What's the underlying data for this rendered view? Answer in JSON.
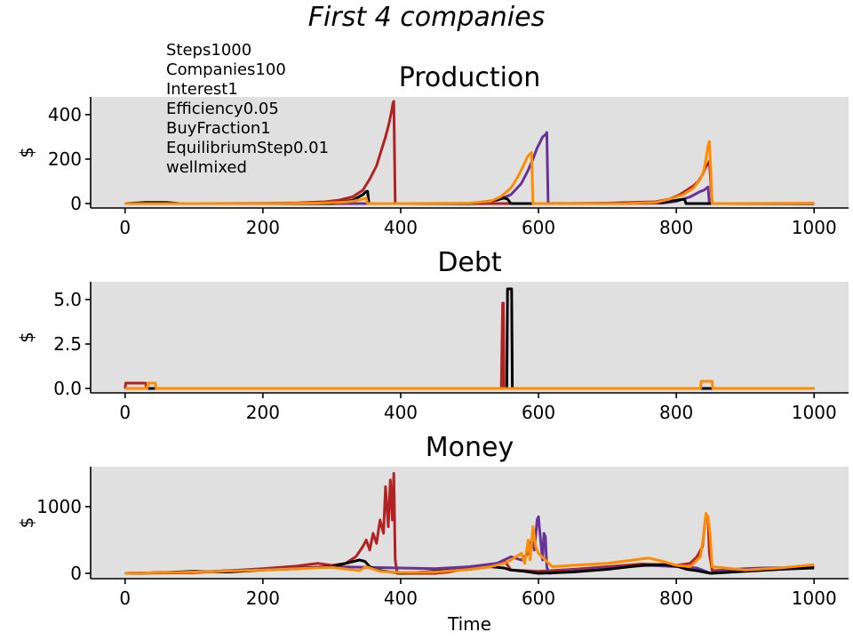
{
  "figure": {
    "suptitle": "First 4 companies",
    "annotation": [
      "Steps1000",
      "Companies100",
      "Interest1",
      "Efficiency0.05",
      "BuyFraction1",
      "EquilibriumStep0.01",
      "wellmixed"
    ],
    "background": "#e0e0e0"
  },
  "chart_data": [
    {
      "type": "line",
      "title": "Production",
      "xlabel": "",
      "ylabel": "$",
      "xlim": [
        -50,
        1050
      ],
      "ylim": [
        -20,
        480
      ],
      "xticks": [
        0,
        200,
        400,
        600,
        800,
        1000
      ],
      "yticks": [
        0,
        200,
        400
      ],
      "ytick_labels": [
        "0",
        "200",
        "400"
      ],
      "series": [
        {
          "color": "#b22222",
          "x": [
            0,
            100,
            200,
            250,
            290,
            310,
            330,
            345,
            355,
            365,
            372,
            378,
            383,
            387,
            389,
            390,
            392,
            500,
            560,
            570,
            600,
            700,
            770,
            790,
            805,
            815,
            825,
            832,
            838,
            842,
            846,
            848,
            852,
            1000
          ],
          "y": [
            0,
            0,
            1,
            3,
            8,
            15,
            30,
            60,
            110,
            170,
            240,
            300,
            360,
            420,
            455,
            460,
            0,
            0,
            0,
            0,
            0,
            2,
            8,
            20,
            40,
            60,
            80,
            100,
            130,
            160,
            180,
            190,
            0,
            0
          ]
        },
        {
          "color": "#663399",
          "x": [
            0,
            300,
            500,
            540,
            560,
            575,
            585,
            592,
            598,
            602,
            606,
            610,
            612,
            614,
            700,
            780,
            800,
            820,
            835,
            840,
            844,
            846,
            848,
            1000
          ],
          "y": [
            0,
            0,
            0,
            15,
            40,
            90,
            150,
            200,
            250,
            275,
            300,
            310,
            320,
            0,
            0,
            2,
            10,
            30,
            55,
            60,
            70,
            75,
            0,
            0
          ]
        },
        {
          "color": "#000000",
          "x": [
            0,
            30,
            60,
            80,
            300,
            330,
            345,
            350,
            352,
            354,
            360,
            500,
            530,
            550,
            555,
            560,
            585,
            587,
            700,
            780,
            800,
            812,
            814,
            1000
          ],
          "y": [
            0,
            5,
            5,
            0,
            0,
            15,
            40,
            55,
            55,
            0,
            0,
            0,
            10,
            25,
            20,
            0,
            0,
            0,
            0,
            5,
            15,
            20,
            0,
            0
          ]
        },
        {
          "color": "#ff8c00",
          "x": [
            0,
            100,
            200,
            280,
            310,
            330,
            345,
            350,
            352,
            355,
            400,
            500,
            530,
            545,
            560,
            570,
            578,
            584,
            588,
            590,
            592,
            650,
            720,
            770,
            790,
            810,
            825,
            835,
            840,
            843,
            846,
            848,
            850,
            852,
            1000
          ],
          "y": [
            0,
            0,
            0,
            2,
            5,
            10,
            20,
            25,
            0,
            0,
            0,
            2,
            10,
            30,
            70,
            120,
            170,
            210,
            225,
            230,
            0,
            0,
            0,
            5,
            20,
            40,
            70,
            110,
            150,
            200,
            260,
            280,
            150,
            0,
            2
          ]
        }
      ]
    },
    {
      "type": "line",
      "title": "Debt",
      "xlabel": "",
      "ylabel": "$",
      "xlim": [
        -50,
        1050
      ],
      "ylim": [
        -0.25,
        6.0
      ],
      "xticks": [
        0,
        200,
        400,
        600,
        800,
        1000
      ],
      "yticks": [
        0,
        2.5,
        5
      ],
      "ytick_labels": [
        "0.0",
        "2.5",
        "5.0"
      ],
      "series": [
        {
          "color": "#b22222",
          "x": [
            0,
            1,
            30,
            31,
            546,
            547,
            548,
            549,
            550,
            551,
            1000
          ],
          "y": [
            0,
            0.3,
            0.3,
            0,
            0,
            2.3,
            4.8,
            4.8,
            0,
            0,
            0
          ]
        },
        {
          "color": "#663399",
          "x": [
            0,
            1000
          ],
          "y": [
            0,
            0
          ]
        },
        {
          "color": "#000000",
          "x": [
            0,
            548,
            549,
            551,
            552,
            554,
            555,
            561,
            562,
            842,
            843,
            848,
            849,
            1000
          ],
          "y": [
            0,
            0,
            0,
            0,
            0,
            0,
            5.6,
            5.6,
            0,
            0,
            0,
            0,
            0,
            0
          ]
        },
        {
          "color": "#ff8c00",
          "x": [
            0,
            32,
            33,
            44,
            45,
            835,
            836,
            852,
            853,
            1000
          ],
          "y": [
            0,
            0,
            0.3,
            0.3,
            0,
            0,
            0.4,
            0.4,
            0,
            0
          ]
        }
      ]
    },
    {
      "type": "line",
      "title": "Money",
      "xlabel": "Time",
      "ylabel": "$",
      "xlim": [
        -50,
        1050
      ],
      "ylim": [
        -80,
        1600
      ],
      "xticks": [
        0,
        200,
        400,
        600,
        800,
        1000
      ],
      "yticks": [
        0,
        1000
      ],
      "ytick_labels": [
        "0",
        "1000"
      ],
      "series": [
        {
          "color": "#b22222",
          "x": [
            0,
            100,
            200,
            250,
            280,
            300,
            320,
            335,
            345,
            350,
            355,
            360,
            365,
            370,
            375,
            378,
            382,
            385,
            388,
            390,
            392,
            395,
            450,
            470,
            500,
            520,
            540,
            550,
            560,
            600,
            650,
            700,
            750,
            780,
            800,
            820,
            830,
            838,
            842,
            846,
            848,
            852,
            1000
          ],
          "y": [
            0,
            10,
            70,
            110,
            150,
            120,
            150,
            250,
            400,
            500,
            350,
            600,
            450,
            800,
            600,
            1300,
            700,
            1400,
            800,
            1500,
            200,
            0,
            0,
            20,
            80,
            120,
            150,
            200,
            50,
            30,
            60,
            100,
            140,
            130,
            120,
            150,
            250,
            400,
            800,
            850,
            300,
            40,
            100
          ]
        },
        {
          "color": "#663399",
          "x": [
            0,
            100,
            200,
            300,
            400,
            450,
            500,
            540,
            560,
            575,
            585,
            590,
            594,
            598,
            600,
            603,
            606,
            608,
            610,
            612,
            615,
            650,
            700,
            760,
            800,
            830,
            850,
            870,
            900,
            925,
            1000
          ],
          "y": [
            0,
            20,
            60,
            100,
            80,
            70,
            100,
            150,
            250,
            200,
            300,
            500,
            350,
            800,
            850,
            500,
            200,
            600,
            550,
            100,
            0,
            40,
            80,
            120,
            100,
            80,
            0,
            50,
            70,
            80,
            90
          ]
        },
        {
          "color": "#000000",
          "x": [
            0,
            50,
            100,
            150,
            200,
            250,
            300,
            320,
            340,
            348,
            355,
            365,
            400,
            450,
            500,
            530,
            550,
            560,
            580,
            600,
            650,
            700,
            750,
            780,
            800,
            815,
            830,
            850,
            900,
            950,
            1000
          ],
          "y": [
            0,
            10,
            30,
            20,
            50,
            70,
            100,
            150,
            200,
            180,
            100,
            50,
            0,
            30,
            60,
            100,
            80,
            50,
            30,
            0,
            20,
            60,
            120,
            130,
            110,
            60,
            40,
            0,
            30,
            60,
            80
          ]
        },
        {
          "color": "#ff8c00",
          "x": [
            0,
            100,
            200,
            300,
            340,
            350,
            370,
            400,
            450,
            500,
            530,
            550,
            560,
            575,
            580,
            585,
            588,
            592,
            596,
            600,
            620,
            650,
            700,
            760,
            780,
            800,
            820,
            835,
            840,
            843,
            846,
            849,
            852,
            900,
            950,
            1000
          ],
          "y": [
            0,
            20,
            50,
            90,
            40,
            100,
            30,
            10,
            20,
            60,
            100,
            150,
            200,
            300,
            150,
            500,
            200,
            700,
            400,
            300,
            100,
            120,
            150,
            230,
            180,
            120,
            100,
            250,
            600,
            900,
            850,
            600,
            100,
            50,
            80,
            130
          ]
        }
      ]
    }
  ]
}
